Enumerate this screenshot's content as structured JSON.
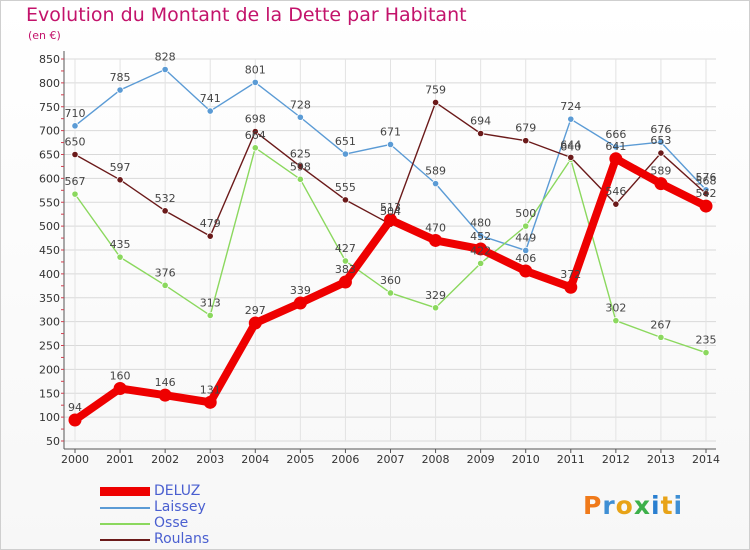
{
  "header": {
    "title": "Evolution du Montant de la Dette par Habitant",
    "unit": "(en €)"
  },
  "brand": {
    "letters": [
      "P",
      "r",
      "o",
      "x",
      "i",
      "t",
      "i"
    ],
    "colors": [
      "#f07a1a",
      "#3f8fd4",
      "#e8a317",
      "#3db04a",
      "#2a7fd0",
      "#e8a317",
      "#3f8fd4"
    ]
  },
  "chart_data": {
    "type": "line",
    "title": "Evolution du Montant de la Dette par Habitant",
    "ylabel": "(en €)",
    "x": [
      2000,
      2001,
      2002,
      2003,
      2004,
      2005,
      2006,
      2007,
      2008,
      2009,
      2010,
      2011,
      2012,
      2013,
      2014
    ],
    "ylim": [
      50,
      850
    ],
    "yticks": [
      50,
      100,
      150,
      200,
      250,
      300,
      350,
      400,
      450,
      500,
      550,
      600,
      650,
      700,
      750,
      800,
      850
    ],
    "grid": true,
    "legend": "bottom-left",
    "series": [
      {
        "name": "DELUZ",
        "color": "#ee0000",
        "values": [
          94,
          160,
          146,
          131,
          297,
          339,
          383,
          513,
          470,
          452,
          406,
          372,
          641,
          589,
          542
        ]
      },
      {
        "name": "Laissey",
        "color": "#5b9bd5",
        "values": [
          710,
          785,
          828,
          741,
          801,
          728,
          651,
          671,
          589,
          480,
          449,
          724,
          666,
          676,
          576
        ]
      },
      {
        "name": "Osse",
        "color": "#8bd85e",
        "values": [
          567,
          435,
          376,
          313,
          664,
          598,
          427,
          360,
          329,
          422,
          500,
          640,
          302,
          267,
          235
        ]
      },
      {
        "name": "Roulans",
        "color": "#6b1a1a",
        "values": [
          650,
          597,
          532,
          479,
          698,
          625,
          555,
          504,
          759,
          694,
          679,
          644,
          546,
          653,
          568
        ]
      }
    ]
  }
}
